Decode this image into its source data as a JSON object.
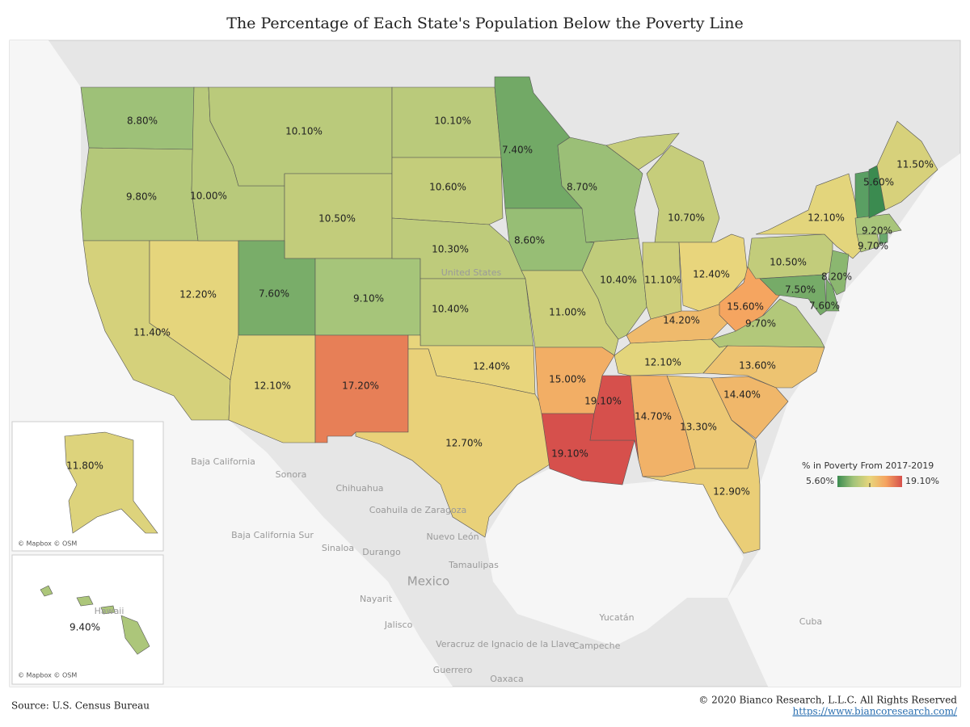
{
  "chart_data": {
    "type": "choropleth",
    "title": "The Percentage of Each State's Population Below the Poverty Line",
    "values": [
      8.8,
      9.8,
      11.4,
      12.2,
      10.0,
      10.1,
      10.5,
      7.6,
      9.1,
      12.1,
      17.2,
      10.1,
      10.6,
      10.3,
      10.4,
      12.4,
      12.7,
      7.4,
      8.6,
      11.0,
      15.0,
      19.1,
      8.7,
      10.4,
      19.1,
      10.7,
      11.1,
      12.4,
      14.2,
      15.6,
      9.7,
      12.1,
      13.6,
      14.4,
      13.3,
      14.7,
      12.9,
      10.5,
      12.1,
      8.2,
      7.6,
      7.5,
      9.7,
      9.2,
      5.6,
      11.5,
      11.8,
      9.4
    ],
    "value_labels": [
      "8.80%",
      "9.80%",
      "11.40%",
      "12.20%",
      "10.00%",
      "10.10%",
      "10.50%",
      "7.60%",
      "9.10%",
      "12.10%",
      "17.20%",
      "10.10%",
      "10.60%",
      "10.30%",
      "10.40%",
      "12.40%",
      "12.70%",
      "7.40%",
      "8.60%",
      "11.00%",
      "15.00%",
      "19.10%",
      "8.70%",
      "10.40%",
      "19.10%",
      "10.70%",
      "11.10%",
      "12.40%",
      "14.20%",
      "15.60%",
      "9.70%",
      "12.10%",
      "13.60%",
      "14.40%",
      "13.30%",
      "14.70%",
      "12.90%",
      "10.50%",
      "12.10%",
      "8.20%",
      "7.60%",
      "7.50%",
      "9.70%",
      "9.20%",
      "5.60%",
      "11.50%",
      "11.80%",
      "9.40%"
    ],
    "color_scale": {
      "title": "% in Poverty From 2017-2019",
      "min": {
        "value": 5.6,
        "label": "5.60%"
      },
      "max": {
        "value": 19.1,
        "label": "19.10%"
      },
      "colors": [
        "#3b8b50",
        "#a3c47a",
        "#e8d67c",
        "#f5a35f",
        "#d6504c"
      ]
    },
    "basemap_labels": [
      "United States",
      "Baja California",
      "Sonora",
      "Chihuahua",
      "Coahuila de Zaragoza",
      "Nuevo León",
      "Baja California Sur",
      "Sinaloa",
      "Durango",
      "Tamaulipas",
      "Mexico",
      "Nayarit",
      "Jalisco",
      "Veracruz de Ignacio de la Llave",
      "Yucatán",
      "Campeche",
      "Guerrero",
      "Oaxaca",
      "Cuba",
      "Hawaii"
    ],
    "attribution": [
      "© Mapbox © OSM",
      "© Mapbox © OSM"
    ],
    "source": "Source: U.S. Census Bureau",
    "copyright": "© 2020 Bianco Research, L.L.C. All Rights Reserved",
    "url": "https://www.biancoresearch.com/"
  }
}
